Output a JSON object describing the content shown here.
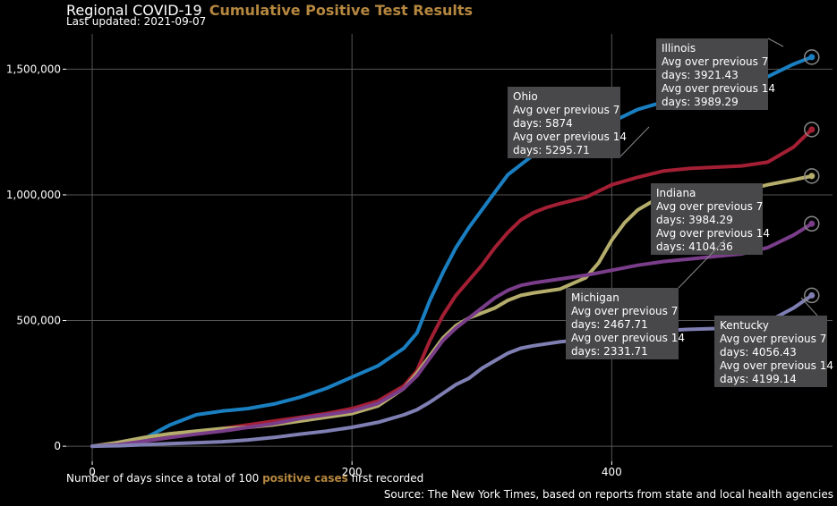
{
  "header": {
    "title": "Regional COVID-19",
    "title_accent": "Cumulative Positive Test Results",
    "subtitle": "Last updated: 2021-09-07"
  },
  "footer": {
    "xlabel_pre": "Number of days since a total of 100",
    "xlabel_highlight": "positive cases",
    "xlabel_post": "first recorded",
    "source": "Source: The New York Times, based on reports from state and local health agencies"
  },
  "colors": {
    "background": "#000000",
    "grid": "#555555",
    "accent": "#b5873f",
    "tooltip_bg": "#48484a"
  },
  "chart_data": {
    "type": "line",
    "xlim": [
      -20,
      570
    ],
    "ylim": [
      -60000,
      1640000
    ],
    "x_ticks": [
      0,
      200,
      400
    ],
    "x_tick_labels": [
      "0",
      "200",
      "400"
    ],
    "y_ticks": [
      0,
      500000,
      1000000,
      1500000
    ],
    "y_tick_labels": [
      "0",
      "500,000",
      "1,000,000",
      "1,500,000"
    ],
    "grid": true,
    "series": [
      {
        "name": "Illinois",
        "color": "#1a7fc1",
        "points": [
          [
            0,
            0
          ],
          [
            20,
            8000
          ],
          [
            40,
            30000
          ],
          [
            60,
            85000
          ],
          [
            80,
            125000
          ],
          [
            100,
            140000
          ],
          [
            120,
            150000
          ],
          [
            140,
            168000
          ],
          [
            160,
            195000
          ],
          [
            180,
            230000
          ],
          [
            200,
            275000
          ],
          [
            220,
            320000
          ],
          [
            240,
            390000
          ],
          [
            250,
            450000
          ],
          [
            260,
            580000
          ],
          [
            270,
            690000
          ],
          [
            280,
            790000
          ],
          [
            290,
            870000
          ],
          [
            300,
            940000
          ],
          [
            310,
            1010000
          ],
          [
            320,
            1080000
          ],
          [
            330,
            1120000
          ],
          [
            340,
            1160000
          ],
          [
            350,
            1190000
          ],
          [
            360,
            1210000
          ],
          [
            380,
            1250000
          ],
          [
            400,
            1290000
          ],
          [
            420,
            1340000
          ],
          [
            440,
            1370000
          ],
          [
            460,
            1395000
          ],
          [
            480,
            1410000
          ],
          [
            500,
            1430000
          ],
          [
            520,
            1470000
          ],
          [
            540,
            1520000
          ],
          [
            554,
            1548000
          ]
        ]
      },
      {
        "name": "Ohio",
        "color": "#a31f34",
        "points": [
          [
            0,
            0
          ],
          [
            20,
            6000
          ],
          [
            40,
            20000
          ],
          [
            60,
            35000
          ],
          [
            80,
            50000
          ],
          [
            100,
            70000
          ],
          [
            120,
            85000
          ],
          [
            140,
            100000
          ],
          [
            160,
            115000
          ],
          [
            180,
            130000
          ],
          [
            200,
            150000
          ],
          [
            220,
            180000
          ],
          [
            240,
            240000
          ],
          [
            250,
            300000
          ],
          [
            260,
            420000
          ],
          [
            270,
            520000
          ],
          [
            280,
            600000
          ],
          [
            290,
            660000
          ],
          [
            300,
            720000
          ],
          [
            310,
            790000
          ],
          [
            320,
            850000
          ],
          [
            330,
            900000
          ],
          [
            340,
            930000
          ],
          [
            350,
            950000
          ],
          [
            360,
            965000
          ],
          [
            380,
            990000
          ],
          [
            400,
            1040000
          ],
          [
            420,
            1070000
          ],
          [
            440,
            1095000
          ],
          [
            460,
            1105000
          ],
          [
            480,
            1110000
          ],
          [
            500,
            1115000
          ],
          [
            520,
            1130000
          ],
          [
            540,
            1190000
          ],
          [
            554,
            1260000
          ]
        ]
      },
      {
        "name": "Indiana",
        "color": "#b5ad6b",
        "points": [
          [
            0,
            0
          ],
          [
            20,
            15000
          ],
          [
            40,
            35000
          ],
          [
            60,
            50000
          ],
          [
            80,
            60000
          ],
          [
            100,
            70000
          ],
          [
            120,
            75000
          ],
          [
            140,
            85000
          ],
          [
            160,
            100000
          ],
          [
            180,
            115000
          ],
          [
            200,
            130000
          ],
          [
            220,
            160000
          ],
          [
            240,
            230000
          ],
          [
            250,
            290000
          ],
          [
            260,
            360000
          ],
          [
            270,
            430000
          ],
          [
            280,
            480000
          ],
          [
            290,
            510000
          ],
          [
            300,
            530000
          ],
          [
            310,
            550000
          ],
          [
            320,
            580000
          ],
          [
            330,
            600000
          ],
          [
            340,
            610000
          ],
          [
            360,
            625000
          ],
          [
            380,
            670000
          ],
          [
            390,
            730000
          ],
          [
            400,
            820000
          ],
          [
            410,
            890000
          ],
          [
            420,
            940000
          ],
          [
            430,
            970000
          ],
          [
            440,
            990000
          ],
          [
            460,
            1000000
          ],
          [
            480,
            1005000
          ],
          [
            500,
            1015000
          ],
          [
            520,
            1040000
          ],
          [
            540,
            1060000
          ],
          [
            554,
            1075000
          ]
        ]
      },
      {
        "name": "Michigan",
        "color": "#7a3d8a",
        "points": [
          [
            0,
            0
          ],
          [
            20,
            6000
          ],
          [
            40,
            20000
          ],
          [
            60,
            35000
          ],
          [
            80,
            48000
          ],
          [
            100,
            60000
          ],
          [
            120,
            75000
          ],
          [
            140,
            90000
          ],
          [
            160,
            110000
          ],
          [
            180,
            125000
          ],
          [
            200,
            140000
          ],
          [
            220,
            170000
          ],
          [
            240,
            230000
          ],
          [
            250,
            280000
          ],
          [
            260,
            350000
          ],
          [
            270,
            420000
          ],
          [
            280,
            470000
          ],
          [
            290,
            510000
          ],
          [
            300,
            550000
          ],
          [
            310,
            590000
          ],
          [
            320,
            620000
          ],
          [
            330,
            640000
          ],
          [
            340,
            650000
          ],
          [
            360,
            665000
          ],
          [
            380,
            680000
          ],
          [
            400,
            700000
          ],
          [
            420,
            720000
          ],
          [
            440,
            735000
          ],
          [
            460,
            745000
          ],
          [
            480,
            755000
          ],
          [
            500,
            765000
          ],
          [
            520,
            790000
          ],
          [
            540,
            840000
          ],
          [
            554,
            885000
          ]
        ]
      },
      {
        "name": "Kentucky",
        "color": "#7f7fb3",
        "points": [
          [
            0,
            0
          ],
          [
            20,
            2000
          ],
          [
            40,
            6000
          ],
          [
            60,
            10000
          ],
          [
            80,
            14000
          ],
          [
            100,
            18000
          ],
          [
            120,
            25000
          ],
          [
            140,
            35000
          ],
          [
            160,
            48000
          ],
          [
            180,
            60000
          ],
          [
            200,
            75000
          ],
          [
            220,
            95000
          ],
          [
            240,
            125000
          ],
          [
            250,
            145000
          ],
          [
            260,
            175000
          ],
          [
            270,
            210000
          ],
          [
            280,
            245000
          ],
          [
            290,
            270000
          ],
          [
            300,
            310000
          ],
          [
            310,
            340000
          ],
          [
            320,
            370000
          ],
          [
            330,
            390000
          ],
          [
            340,
            400000
          ],
          [
            360,
            415000
          ],
          [
            380,
            425000
          ],
          [
            400,
            440000
          ],
          [
            420,
            450000
          ],
          [
            440,
            460000
          ],
          [
            460,
            465000
          ],
          [
            480,
            468000
          ],
          [
            500,
            475000
          ],
          [
            520,
            495000
          ],
          [
            540,
            550000
          ],
          [
            554,
            600000
          ]
        ]
      }
    ],
    "tooltips": [
      {
        "state": "Illinois",
        "lines": [
          "Illinois",
          "Avg over previous 7",
          "days: 3921.43",
          "Avg over previous 14",
          "days: 3989.29"
        ]
      },
      {
        "state": "Ohio",
        "lines": [
          "Ohio",
          "Avg over previous 7",
          "days: 5874",
          "Avg over previous 14",
          "days: 5295.71"
        ]
      },
      {
        "state": "Indiana",
        "lines": [
          "Indiana",
          "Avg over previous 7",
          "days: 3984.29",
          "Avg over previous 14",
          "days: 4104.36"
        ]
      },
      {
        "state": "Michigan",
        "lines": [
          "Michigan",
          "Avg over previous 7",
          "days: 2467.71",
          "Avg over previous 14",
          "days: 2331.71"
        ]
      },
      {
        "state": "Kentucky",
        "lines": [
          "Kentucky",
          "Avg over previous 7",
          "days: 4056.43",
          "Avg over previous 14",
          "days: 4199.14"
        ]
      }
    ]
  }
}
